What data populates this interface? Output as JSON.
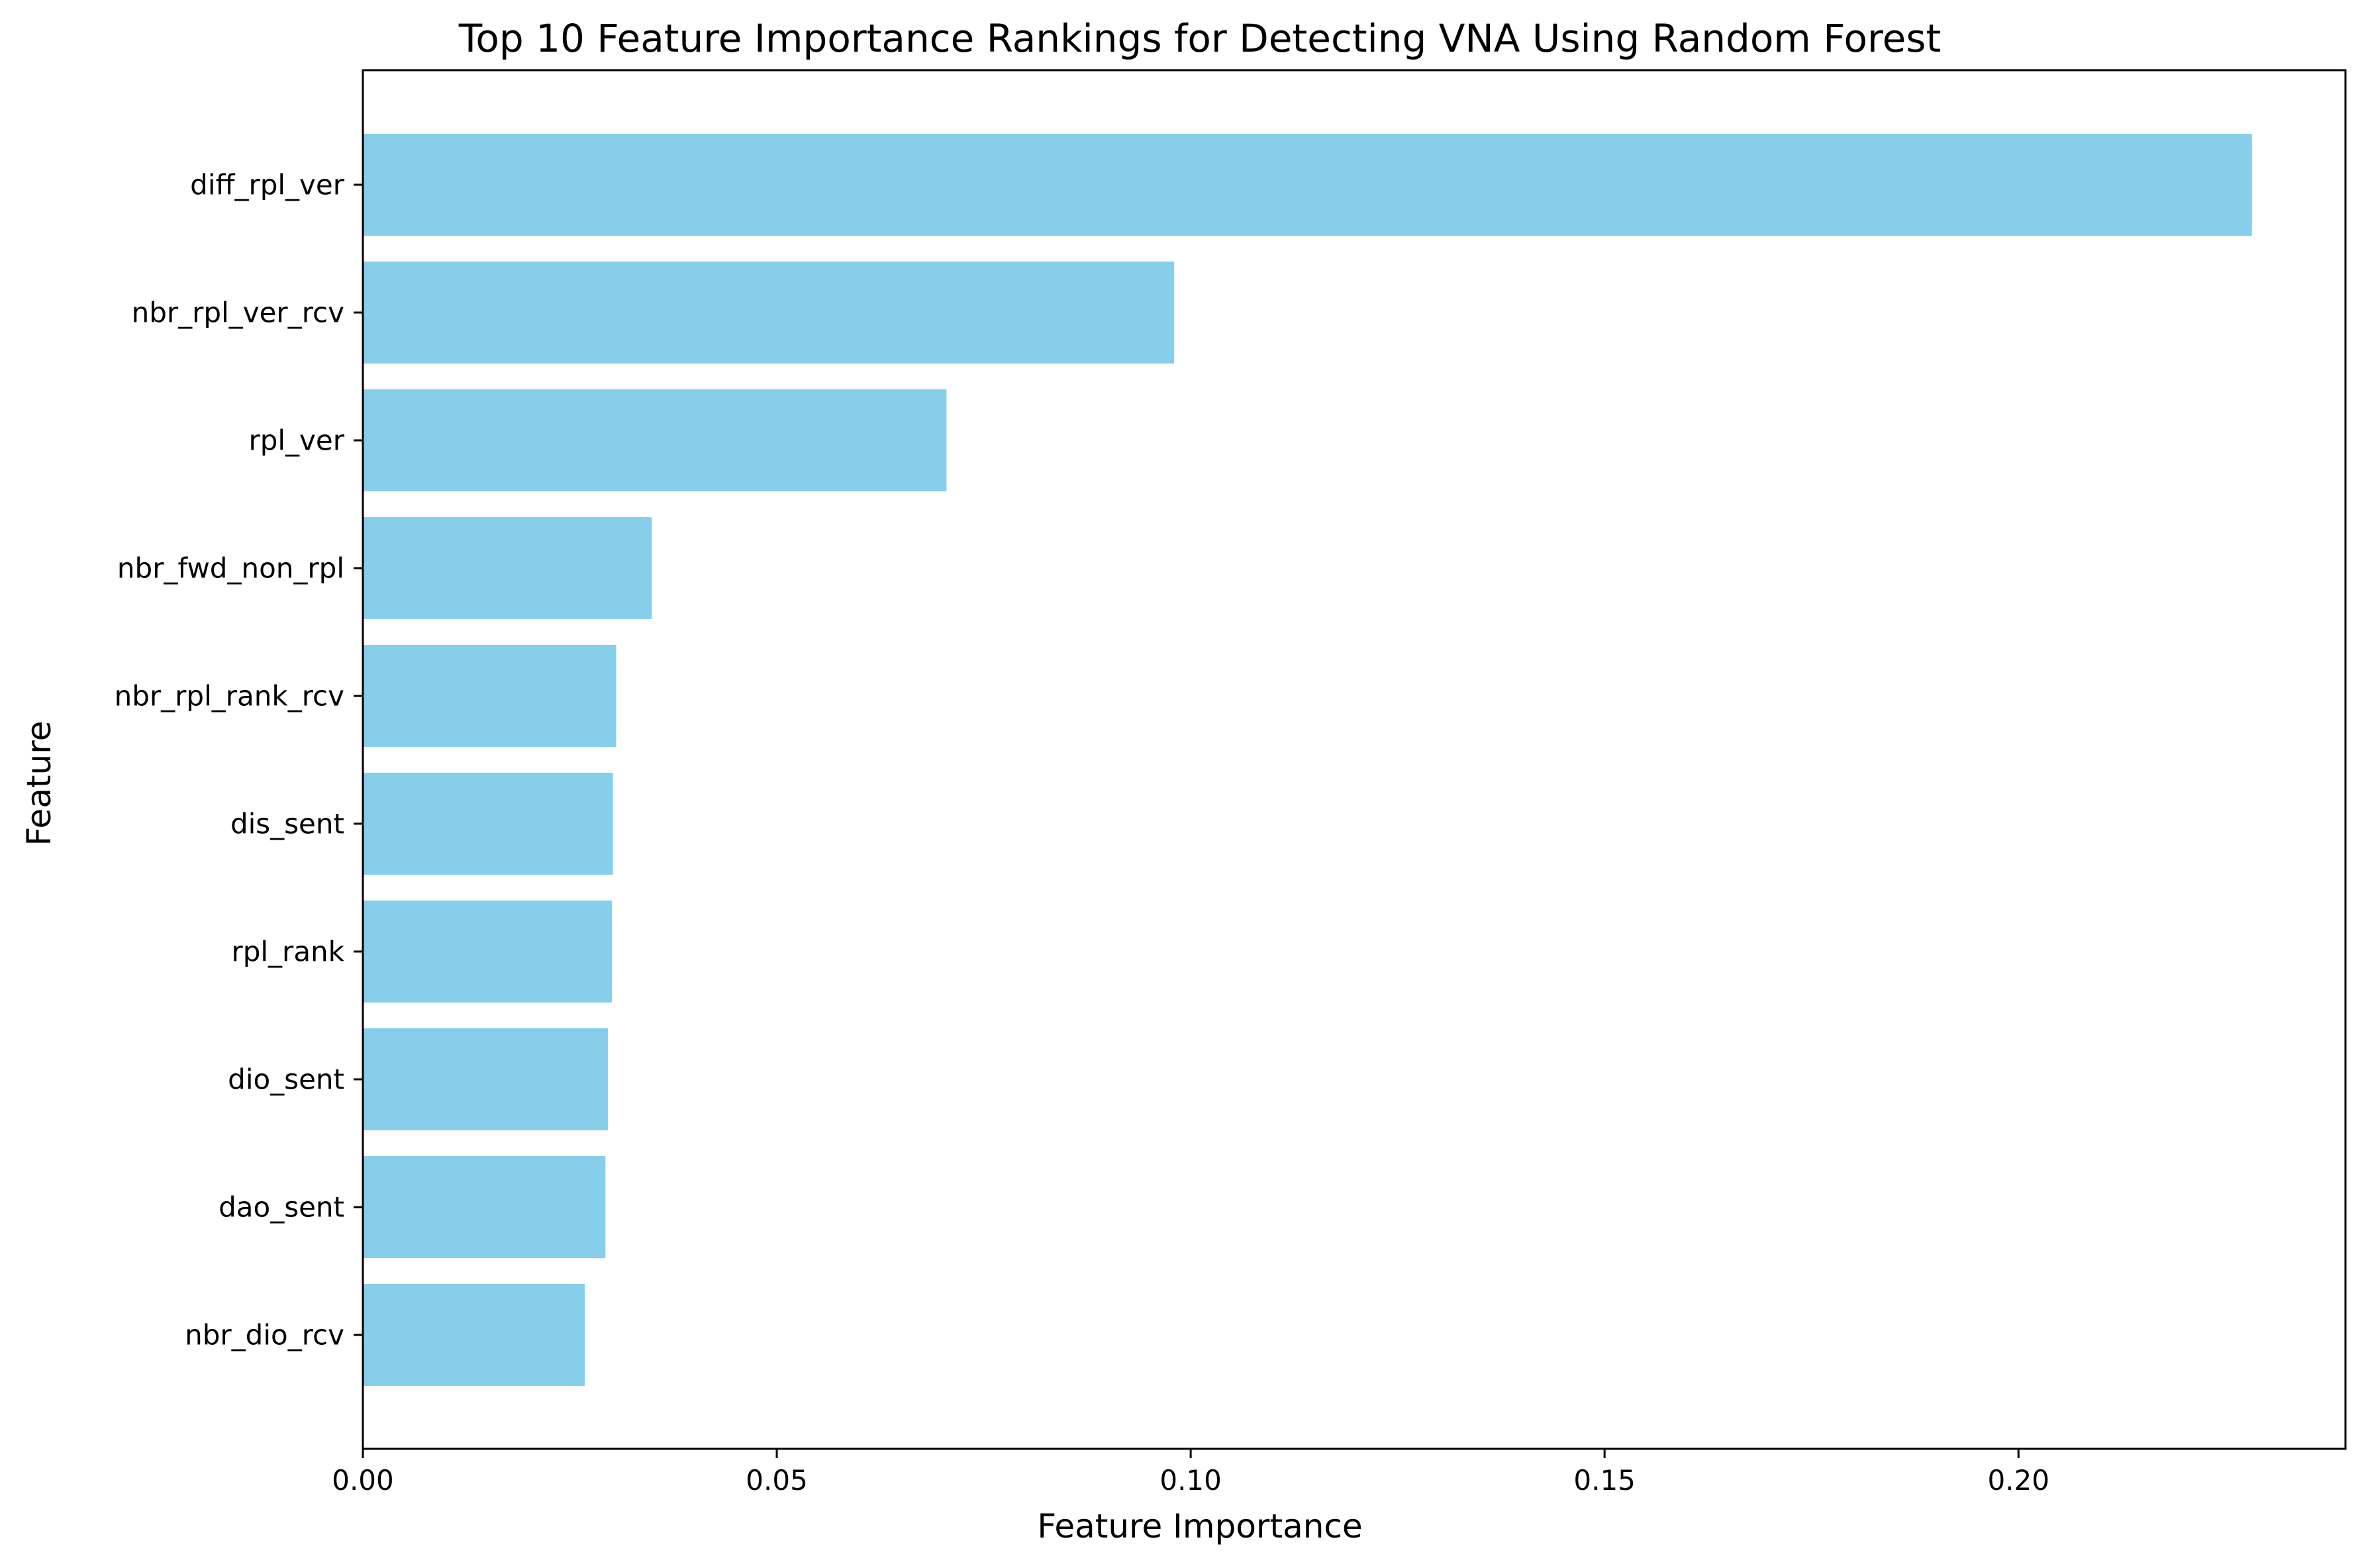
{
  "chart_data": {
    "type": "bar",
    "orientation": "horizontal",
    "title": "Top 10 Feature Importance Rankings for Detecting VNA Using Random Forest",
    "xlabel": "Feature Importance",
    "ylabel": "Feature",
    "xlim": [
      0,
      0.2395
    ],
    "xticks": [
      0.0,
      0.05,
      0.1,
      0.15,
      0.2
    ],
    "xtick_labels": [
      "0.00",
      "0.05",
      "0.10",
      "0.15",
      "0.20"
    ],
    "categories": [
      "diff_rpl_ver",
      "nbr_rpl_ver_rcv",
      "rpl_ver",
      "nbr_fwd_non_rpl",
      "nbr_rpl_rank_rcv",
      "dis_sent",
      "rpl_rank",
      "dio_sent",
      "dao_sent",
      "nbr_dio_rcv"
    ],
    "values": [
      0.2282,
      0.098,
      0.0705,
      0.0349,
      0.0306,
      0.0302,
      0.0301,
      0.0296,
      0.0293,
      0.0268
    ],
    "bar_color": "#87CEEB",
    "grid": false,
    "legend": "none"
  }
}
